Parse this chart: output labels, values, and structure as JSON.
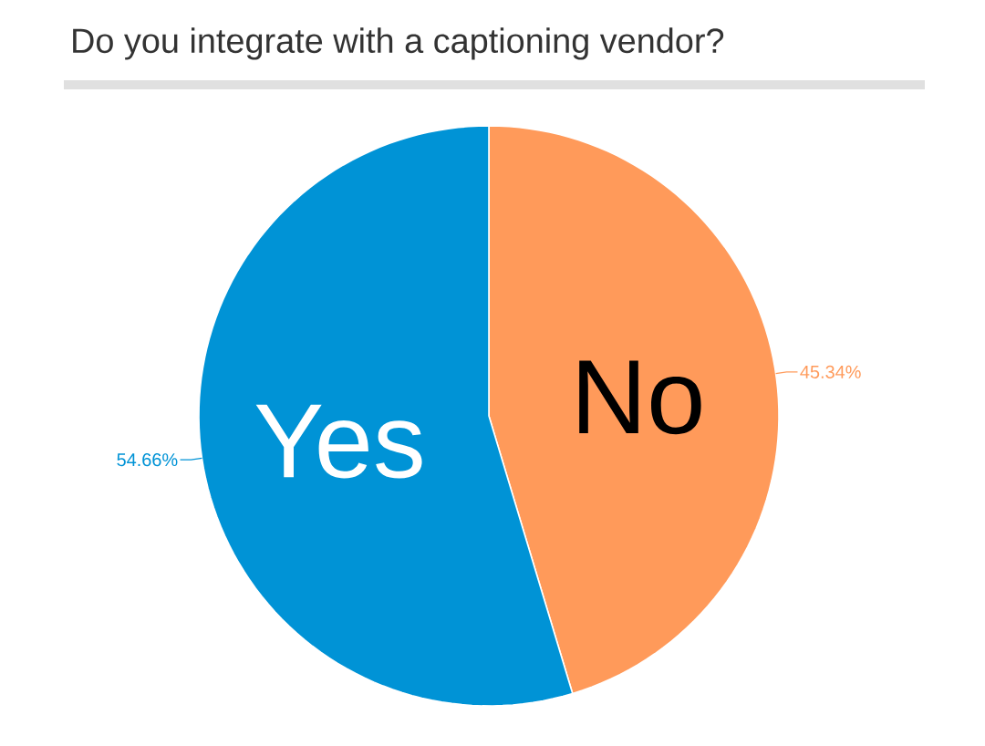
{
  "chart_data": {
    "type": "pie",
    "title": "Do you integrate with a captioning vendor?",
    "categories": [
      "No",
      "Yes"
    ],
    "values": [
      45.34,
      54.66
    ],
    "value_labels": [
      "45.34%",
      "54.66%"
    ],
    "colors": [
      "#ff9a5a",
      "#0093d6"
    ]
  }
}
